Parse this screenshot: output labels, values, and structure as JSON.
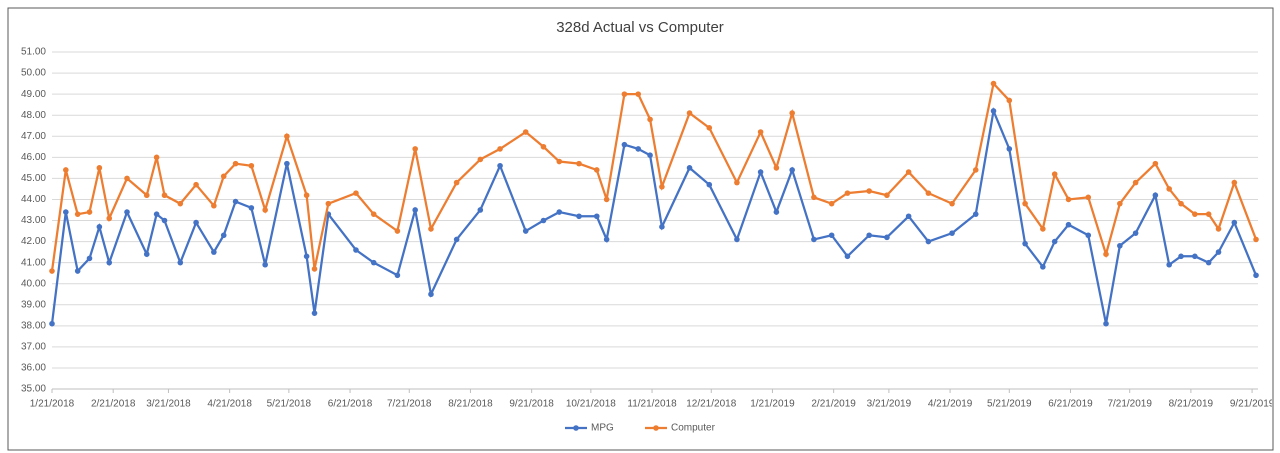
{
  "chart_data": {
    "type": "line",
    "title": "328d Actual vs Computer",
    "x": [
      "2018-01-21",
      "2018-01-28",
      "2018-02-03",
      "2018-02-09",
      "2018-02-14",
      "2018-02-19",
      "2018-02-28",
      "2018-03-10",
      "2018-03-15",
      "2018-03-19",
      "2018-03-27",
      "2018-04-04",
      "2018-04-13",
      "2018-04-18",
      "2018-04-24",
      "2018-05-02",
      "2018-05-09",
      "2018-05-20",
      "2018-05-30",
      "2018-06-03",
      "2018-06-10",
      "2018-06-24",
      "2018-07-03",
      "2018-07-15",
      "2018-07-24",
      "2018-08-01",
      "2018-08-14",
      "2018-08-26",
      "2018-09-05",
      "2018-09-18",
      "2018-09-27",
      "2018-10-05",
      "2018-10-15",
      "2018-10-24",
      "2018-10-29",
      "2018-11-07",
      "2018-11-14",
      "2018-11-20",
      "2018-11-26",
      "2018-12-10",
      "2018-12-20",
      "2019-01-03",
      "2019-01-15",
      "2019-01-23",
      "2019-01-31",
      "2019-02-11",
      "2019-02-20",
      "2019-02-28",
      "2019-03-11",
      "2019-03-20",
      "2019-03-31",
      "2019-04-10",
      "2019-04-22",
      "2019-05-04",
      "2019-05-13",
      "2019-05-21",
      "2019-05-29",
      "2019-06-07",
      "2019-06-13",
      "2019-06-20",
      "2019-06-30",
      "2019-07-09",
      "2019-07-16",
      "2019-07-24",
      "2019-08-03",
      "2019-08-10",
      "2019-08-16",
      "2019-08-23",
      "2019-08-30",
      "2019-09-04",
      "2019-09-12",
      "2019-09-23"
    ],
    "series": [
      {
        "name": "MPG",
        "color": "#4472c4",
        "values": [
          38.1,
          43.4,
          40.6,
          41.2,
          42.7,
          41.0,
          43.4,
          41.4,
          43.3,
          43.0,
          41.0,
          42.9,
          41.5,
          42.3,
          43.9,
          43.6,
          40.9,
          45.7,
          41.3,
          38.6,
          43.3,
          41.6,
          41.0,
          40.4,
          43.5,
          39.5,
          42.1,
          43.5,
          45.6,
          42.5,
          43.0,
          43.4,
          43.2,
          43.2,
          42.1,
          46.6,
          46.4,
          46.1,
          42.7,
          45.5,
          44.7,
          42.1,
          45.3,
          43.4,
          45.4,
          42.1,
          42.3,
          41.3,
          42.3,
          42.2,
          43.2,
          42.0,
          42.4,
          43.3,
          48.2,
          46.4,
          41.9,
          40.8,
          42.0,
          42.8,
          42.3,
          38.1,
          41.8,
          42.4,
          44.2,
          40.9,
          41.3,
          41.3,
          41.0,
          41.5,
          42.9,
          40.4
        ]
      },
      {
        "name": "Computer",
        "color": "#ed7d31",
        "values": [
          40.6,
          45.4,
          43.3,
          43.4,
          45.5,
          43.1,
          45.0,
          44.2,
          46.0,
          44.2,
          43.8,
          44.7,
          43.7,
          45.1,
          45.7,
          45.6,
          43.5,
          47.0,
          44.2,
          40.7,
          43.8,
          44.3,
          43.3,
          42.5,
          46.4,
          42.6,
          44.8,
          45.9,
          46.4,
          47.2,
          46.5,
          45.8,
          45.7,
          45.4,
          44.0,
          49.0,
          49.0,
          47.8,
          44.6,
          48.1,
          47.4,
          44.8,
          47.2,
          45.5,
          48.1,
          44.1,
          43.8,
          44.3,
          44.4,
          44.2,
          45.3,
          44.3,
          43.8,
          45.4,
          49.5,
          48.7,
          43.8,
          42.6,
          45.2,
          44.0,
          44.1,
          41.4,
          43.8,
          44.8,
          45.7,
          44.5,
          43.8,
          43.3,
          43.3,
          42.6,
          44.8,
          42.1
        ]
      }
    ],
    "xlim": [
      "2018-01-21",
      "2019-09-24"
    ],
    "xticks": [
      {
        "value": "2018-01-21",
        "label": "1/21/2018"
      },
      {
        "value": "2018-02-21",
        "label": "2/21/2018"
      },
      {
        "value": "2018-03-21",
        "label": "3/21/2018"
      },
      {
        "value": "2018-04-21",
        "label": "4/21/2018"
      },
      {
        "value": "2018-05-21",
        "label": "5/21/2018"
      },
      {
        "value": "2018-06-21",
        "label": "6/21/2018"
      },
      {
        "value": "2018-07-21",
        "label": "7/21/2018"
      },
      {
        "value": "2018-08-21",
        "label": "8/21/2018"
      },
      {
        "value": "2018-09-21",
        "label": "9/21/2018"
      },
      {
        "value": "2018-10-21",
        "label": "10/21/2018"
      },
      {
        "value": "2018-11-21",
        "label": "11/21/2018"
      },
      {
        "value": "2018-12-21",
        "label": "12/21/2018"
      },
      {
        "value": "2019-01-21",
        "label": "1/21/2019"
      },
      {
        "value": "2019-02-21",
        "label": "2/21/2019"
      },
      {
        "value": "2019-03-21",
        "label": "3/21/2019"
      },
      {
        "value": "2019-04-21",
        "label": "4/21/2019"
      },
      {
        "value": "2019-05-21",
        "label": "5/21/2019"
      },
      {
        "value": "2019-06-21",
        "label": "6/21/2019"
      },
      {
        "value": "2019-07-21",
        "label": "7/21/2019"
      },
      {
        "value": "2019-08-21",
        "label": "8/21/2019"
      },
      {
        "value": "2019-09-21",
        "label": "9/21/2019"
      }
    ],
    "ylim": [
      35,
      51
    ],
    "yticks": [
      {
        "value": 35,
        "label": "35.00"
      },
      {
        "value": 36,
        "label": "36.00"
      },
      {
        "value": 37,
        "label": "37.00"
      },
      {
        "value": 38,
        "label": "38.00"
      },
      {
        "value": 39,
        "label": "39.00"
      },
      {
        "value": 40,
        "label": "40.00"
      },
      {
        "value": 41,
        "label": "41.00"
      },
      {
        "value": 42,
        "label": "42.00"
      },
      {
        "value": 43,
        "label": "43.00"
      },
      {
        "value": 44,
        "label": "44.00"
      },
      {
        "value": 45,
        "label": "45.00"
      },
      {
        "value": 46,
        "label": "46.00"
      },
      {
        "value": 47,
        "label": "47.00"
      },
      {
        "value": 48,
        "label": "48.00"
      },
      {
        "value": 49,
        "label": "49.00"
      },
      {
        "value": 50,
        "label": "50.00"
      },
      {
        "value": 51,
        "label": "51.00"
      }
    ],
    "grid": true,
    "legend": "bottom"
  }
}
